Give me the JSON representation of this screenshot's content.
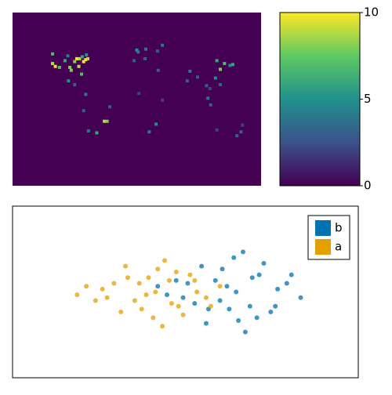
{
  "chart_data": [
    {
      "type": "heatmap",
      "colormap": "viridis",
      "xlim": [
        -180,
        180
      ],
      "ylim": [
        -90,
        90
      ],
      "x": [
        -122,
        -118,
        -74,
        -87,
        -95,
        -84,
        -80,
        -104,
        -112,
        -90,
        -77,
        -71,
        -97,
        -83,
        -122,
        -79,
        -73,
        -100,
        -99,
        -90,
        -47,
        -43,
        -58,
        -70,
        -77,
        -74,
        -39,
        0,
        2,
        13,
        12,
        -4,
        30,
        37,
        31,
        3,
        28,
        18,
        37,
        77,
        73,
        88,
        121,
        116,
        114,
        127,
        139,
        135,
        106,
        101,
        103,
        107,
        121,
        151,
        145,
        153,
        116
      ],
      "y": [
        37,
        34,
        41,
        42,
        30,
        34,
        26,
        40,
        33,
        39,
        39,
        42,
        33,
        42,
        47,
        44,
        46,
        45,
        19,
        15,
        -23,
        -23,
        -35,
        -33,
        -12,
        5,
        -8,
        51,
        49,
        52,
        42,
        40,
        50,
        56,
        30,
        6,
        -26,
        -34,
        -1,
        29,
        19,
        23,
        31,
        40,
        22,
        37,
        36,
        35,
        11,
        14,
        1,
        -6,
        15,
        -34,
        -38,
        -27,
        -32
      ],
      "values": [
        9,
        10,
        10,
        10,
        8,
        9,
        7,
        6,
        7,
        8,
        10,
        9,
        8,
        9,
        7,
        6,
        5,
        4,
        5,
        3,
        9,
        8,
        6,
        4,
        3,
        4,
        3,
        5,
        4,
        4,
        3,
        3,
        3,
        4,
        3,
        2,
        5,
        4,
        2,
        4,
        3,
        3,
        8,
        6,
        5,
        7,
        6,
        5,
        2,
        3,
        4,
        3,
        3,
        3,
        3,
        2,
        2
      ],
      "clim": [
        0,
        10
      ],
      "colorbar_ticks": [
        0,
        5,
        10
      ]
    },
    {
      "type": "scatter",
      "xlim": [
        -6,
        9
      ],
      "ylim": [
        -3,
        3
      ],
      "legend": "top-right",
      "series": [
        {
          "name": "b",
          "color": "#0072b2",
          "x": [
            3.0,
            4.7,
            1.4,
            3.8,
            5.9,
            2.2,
            4.3,
            3.3,
            5.2,
            0.7,
            3.6,
            2.5,
            5.5,
            2.8,
            4.9,
            0.3,
            4.1,
            1.9,
            4.4,
            6.5,
            3.1,
            4.6,
            1.1,
            3.7,
            5.4,
            2.4,
            4.0,
            3.4,
            6.1,
            1.6
          ],
          "values": [
            -0.3,
            0.6,
            -0.2,
            -1.0,
            0.3,
            0.9,
            -0.5,
            0.2,
            -0.7,
            -0.1,
            1.2,
            -0.6,
            0.1,
            0.4,
            1.0,
            0.2,
            -1.4,
            -0.4,
            0.5,
            -0.2,
            0.8,
            -0.9,
            0.4,
            0.0,
            -0.5,
            -1.1,
            1.4,
            -0.6,
            0.6,
            0.3
          ]
        },
        {
          "name": "a",
          "color": "#e69f00",
          "x": [
            -0.5,
            1.2,
            -2.1,
            0.3,
            2.4,
            -1.3,
            0.8,
            -0.2,
            1.7,
            -2.8,
            0.1,
            -1.0,
            2.0,
            -0.7,
            1.4,
            -3.2,
            0.6,
            -1.6,
            0.9,
            3.0,
            -0.4,
            1.1,
            -2.4,
            0.2,
            1.9,
            -1.1,
            0.5,
            -0.1,
            2.6,
            -1.9
          ],
          "values": [
            0.3,
            -0.5,
            0.1,
            0.8,
            -0.2,
            -0.7,
            0.4,
            -0.1,
            0.6,
            0.2,
            -0.9,
            0.5,
            0.0,
            -0.3,
            -0.8,
            -0.1,
            1.1,
            0.3,
            -0.4,
            0.2,
            -0.6,
            0.7,
            -0.3,
            0.0,
            0.4,
            0.9,
            -1.2,
            0.5,
            -0.5,
            -0.2
          ]
        }
      ]
    }
  ]
}
